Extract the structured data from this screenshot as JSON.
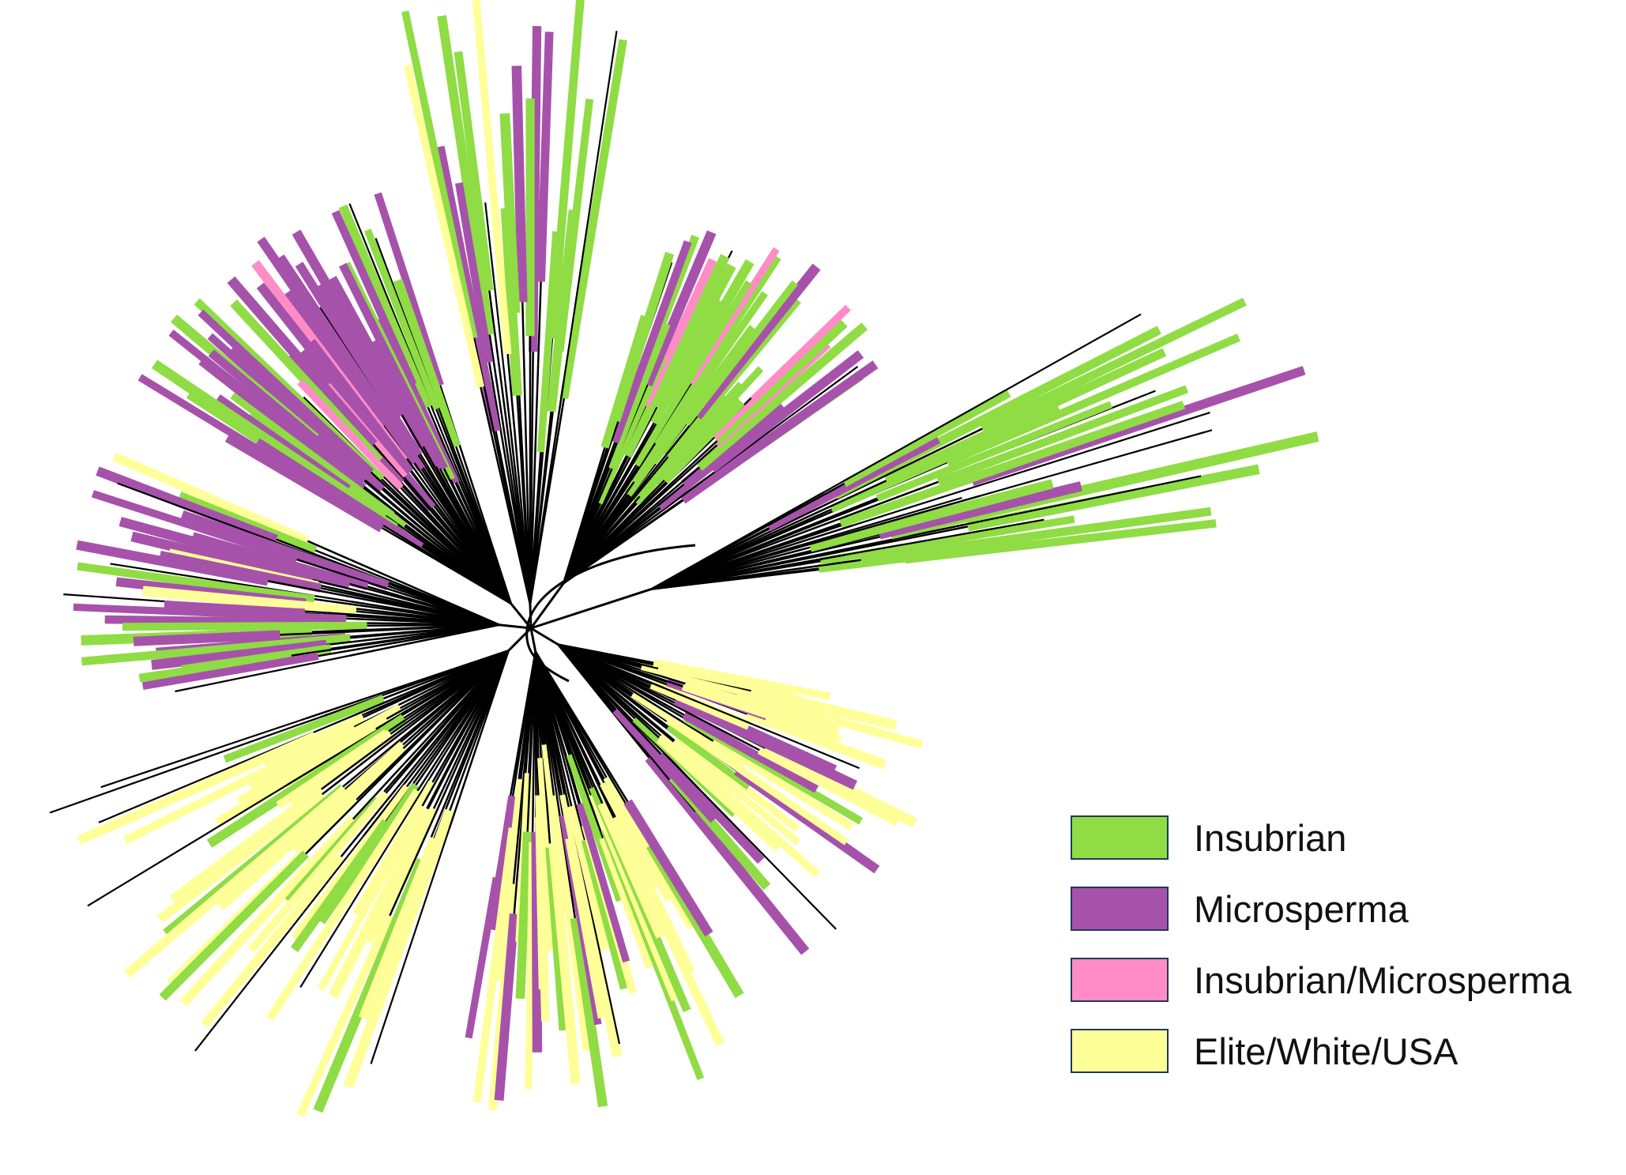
{
  "colors": {
    "insubrian": "#8fdc44",
    "microsperma": "#a652ab",
    "insubrian_microsperma": "#ff8cc6",
    "elite_white_usa": "#ffff99",
    "unassigned": "#000000"
  },
  "legend": {
    "items": [
      {
        "key": "insubrian",
        "label": "Insubrian",
        "color": "#8fdc44"
      },
      {
        "key": "microsperma",
        "label": "Microsperma",
        "color": "#a652ab"
      },
      {
        "key": "insubrian_microsperma",
        "label": "Insubrian/Microsperma",
        "color": "#ff8cc6"
      },
      {
        "key": "elite_white_usa",
        "label": "Elite/White/USA",
        "color": "#ffff99"
      }
    ]
  },
  "tree": {
    "layout": "unrooted-radial",
    "clades": [
      {
        "name": "upper-left-microsperma",
        "group_mix": [
          "microsperma",
          "insubrian",
          "unassigned",
          "insubrian_microsperma"
        ]
      },
      {
        "name": "top-insubrian",
        "group_mix": [
          "insubrian",
          "microsperma",
          "elite_white_usa",
          "unassigned"
        ]
      },
      {
        "name": "upper-right-mixed",
        "group_mix": [
          "insubrian",
          "microsperma",
          "insubrian_microsperma",
          "unassigned",
          "elite_white_usa"
        ]
      },
      {
        "name": "right-insubrian",
        "group_mix": [
          "insubrian",
          "unassigned",
          "microsperma"
        ]
      },
      {
        "name": "lower-right-mixed",
        "group_mix": [
          "elite_white_usa",
          "microsperma",
          "insubrian",
          "unassigned",
          "insubrian_microsperma"
        ]
      },
      {
        "name": "bottom-mixed",
        "group_mix": [
          "elite_white_usa",
          "microsperma",
          "insubrian",
          "unassigned"
        ]
      },
      {
        "name": "lower-left-elite",
        "group_mix": [
          "elite_white_usa",
          "unassigned",
          "insubrian"
        ]
      },
      {
        "name": "left-mixed",
        "group_mix": [
          "microsperma",
          "insubrian",
          "unassigned",
          "elite_white_usa"
        ]
      }
    ]
  }
}
